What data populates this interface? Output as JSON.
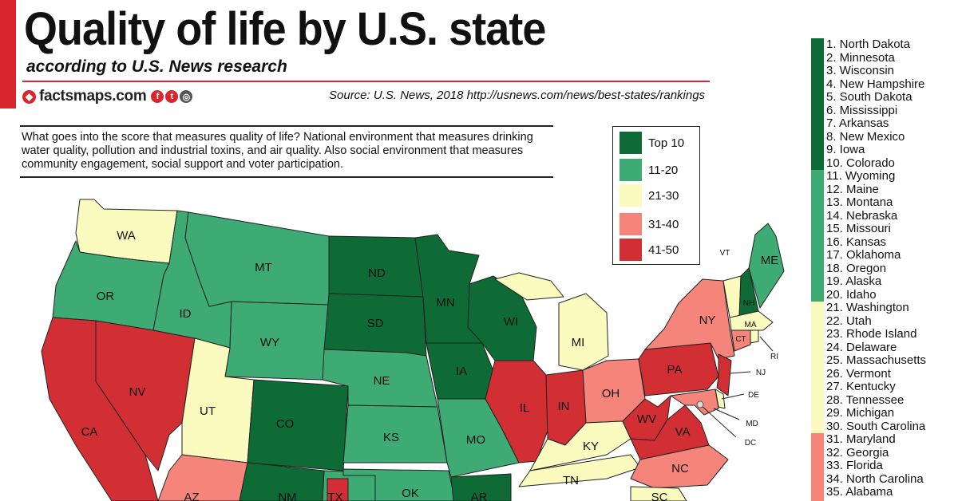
{
  "header": {
    "title": "Quality of life by U.S. state",
    "subtitle": "according to U.S. News research",
    "brand": "factsmaps.com",
    "source": "Source: U.S. News, 2018  http://usnews.com/news/best-states/rankings"
  },
  "description": "What goes into the score that measures quality of life? National environment that measures drinking water quality, pollution and industrial toxins, and air quality. Also social environment that measures community engagement, social support and voter participation.",
  "colors": {
    "top10": "#0e6b36",
    "r11_20": "#3eaa74",
    "r21_30": "#fbfbc0",
    "r31_40": "#f5847a",
    "r41_50": "#d12f34",
    "accent": "#d9262c"
  },
  "legend": [
    {
      "label": "Top 10",
      "color": "#0e6b36"
    },
    {
      "label": "11-20",
      "color": "#3eaa74"
    },
    {
      "label": "21-30",
      "color": "#fbfbc0"
    },
    {
      "label": "31-40",
      "color": "#f5847a"
    },
    {
      "label": "41-50",
      "color": "#d12f34"
    }
  ],
  "rankings": [
    "1. North Dakota",
    "2. Minnesota",
    "3. Wisconsin",
    "4. New Hampshire",
    "5. South Dakota",
    "6. Mississippi",
    "7. Arkansas",
    "8. New Mexico",
    "9. Iowa",
    "10. Colorado",
    "11. Wyoming",
    "12. Maine",
    "13. Montana",
    "14. Nebraska",
    "15. Missouri",
    "16. Kansas",
    "17. Oklahoma",
    "18. Oregon",
    "19. Alaska",
    "20. Idaho",
    "21. Washington",
    "22. Utah",
    "23. Rhode Island",
    "24. Delaware",
    "25. Massachusetts",
    "26. Vermont",
    "27. Kentucky",
    "28. Tennessee",
    "29. Michigan",
    "30. South Carolina",
    "31. Maryland",
    "32. Georgia",
    "33. Florida",
    "34. North Carolina",
    "35. Alabama"
  ],
  "map_labels": {
    "WA": "WA",
    "OR": "OR",
    "CA": "CA",
    "NV": "NV",
    "ID": "ID",
    "MT": "MT",
    "WY": "WY",
    "UT": "UT",
    "CO": "CO",
    "AZ": "AZ",
    "NM": "NM",
    "ND": "ND",
    "SD": "SD",
    "NE": "NE",
    "KS": "KS",
    "OK": "OK",
    "TX": "TX",
    "MN": "MN",
    "IA": "IA",
    "MO": "MO",
    "AR": "AR",
    "WI": "WI",
    "IL": "IL",
    "IN": "IN",
    "MI": "MI",
    "OH": "OH",
    "KY": "KY",
    "TN": "TN",
    "WV": "WV",
    "VA": "VA",
    "NC": "NC",
    "SC": "SC",
    "PA": "PA",
    "NY": "NY",
    "VT": "VT",
    "NH": "NH",
    "ME": "ME",
    "MA": "MA",
    "CT": "CT",
    "RI": "RI",
    "NJ": "NJ",
    "DE": "DE",
    "MD": "MD",
    "DC": "DC"
  }
}
